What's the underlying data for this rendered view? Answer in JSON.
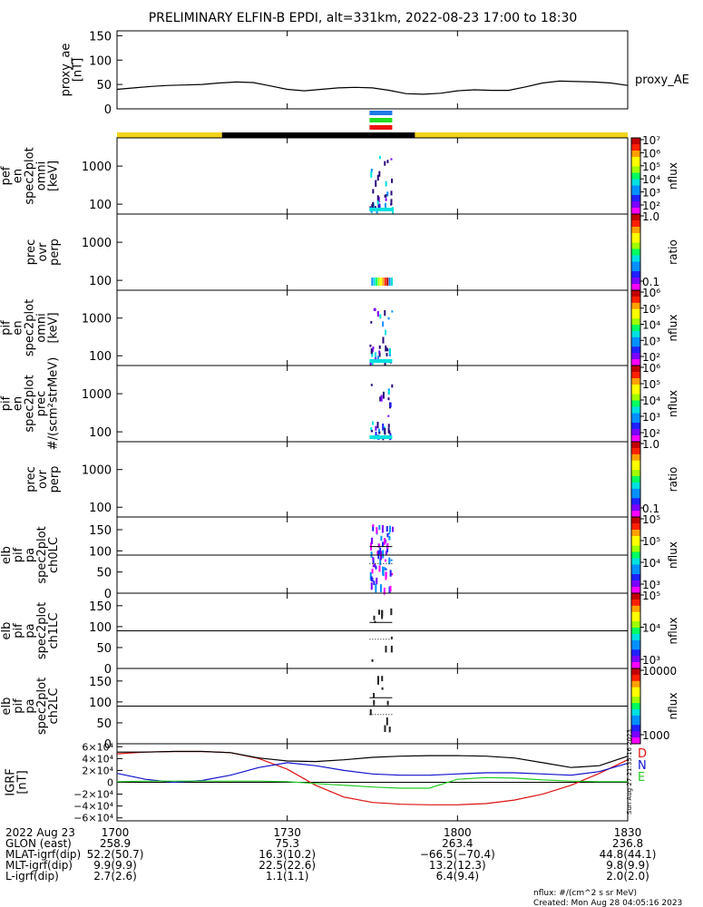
{
  "title": "PRELIMINARY ELFIN-B EPDI, alt=331km, 2022-08-23 17:00 to 18:30",
  "colors": {
    "sun_bar": "#f2d21a",
    "shadow_bar": "#000000",
    "marker_blue": "#1e7be8",
    "marker_green": "#22dd22",
    "marker_red": "#ee1111",
    "igrf_d": "#dd1111",
    "igrf_n": "#1111cc",
    "igrf_e": "#22cc22"
  },
  "time_axis": {
    "ticks": [
      "1700",
      "1730",
      "1800",
      "1830"
    ],
    "minutes": [
      0,
      30,
      60,
      90
    ],
    "range_minutes": [
      0,
      90
    ]
  },
  "orbit_bar": {
    "segments": [
      {
        "state": "sunlight",
        "start_min": 0,
        "end_min": 18.5
      },
      {
        "state": "shadow",
        "start_min": 18.5,
        "end_min": 52.5
      },
      {
        "state": "sunlight",
        "start_min": 52.5,
        "end_min": 90
      }
    ]
  },
  "science_zone_min": [
    44.5,
    48.5
  ],
  "chart_data": [
    {
      "panel": "proxy_ae",
      "type": "line",
      "ylabel": [
        "proxy_ae",
        "[nT]"
      ],
      "yticks": [
        "0",
        "50",
        "100",
        "150"
      ],
      "ylim": [
        0,
        160
      ],
      "legend": "proxy_AE",
      "x": [
        0,
        3,
        6,
        9,
        12,
        15,
        18,
        21,
        24,
        27,
        30,
        33,
        36,
        39,
        42,
        45,
        48,
        51,
        54,
        57,
        60,
        63,
        66,
        69,
        72,
        75,
        78,
        81,
        84,
        87,
        90
      ],
      "values": [
        40,
        43,
        46,
        48,
        49,
        50,
        53,
        55,
        54,
        47,
        40,
        37,
        40,
        43,
        44,
        43,
        38,
        31,
        30,
        32,
        37,
        39,
        38,
        38,
        45,
        53,
        57,
        56,
        55,
        53,
        48
      ]
    },
    {
      "panel": "elb_pef_en_spec2plot_omni",
      "type": "heatmap",
      "ylabel": [
        "elb",
        "pef",
        "en",
        "spec2plot",
        "omni",
        "[keV]"
      ],
      "yticks": [
        "100",
        "1000"
      ],
      "log_y": true,
      "colorbar": {
        "label": "nflux",
        "ticks": [
          "10²",
          "10³",
          "10⁴",
          "10⁵",
          "10⁶",
          "10⁷"
        ]
      }
    },
    {
      "panel": "prec_ovr_perp_1",
      "type": "heatmap",
      "ylabel": [
        "prec",
        "ovr",
        "perp"
      ],
      "yticks": [
        "100",
        "1000"
      ],
      "log_y": true,
      "colorbar": {
        "label": "ratio",
        "ticks": [
          "0.1",
          "1.0"
        ]
      }
    },
    {
      "panel": "elb_pif_en_spec2plot_omni",
      "type": "heatmap",
      "ylabel": [
        "elb",
        "pif",
        "en",
        "spec2plot",
        "omni",
        "[keV]"
      ],
      "yticks": [
        "100",
        "1000"
      ],
      "log_y": true,
      "colorbar": {
        "label": "nflux",
        "ticks": [
          "10²",
          "10³",
          "10⁴",
          "10⁵",
          "10⁶"
        ]
      }
    },
    {
      "panel": "elb_pif_en_spec2plot_prec",
      "type": "heatmap",
      "ylabel": [
        "elb",
        "pif",
        "en",
        "spec2plot",
        "prec",
        "#/(scm²strMeV)"
      ],
      "yticks": [
        "100",
        "1000"
      ],
      "log_y": true,
      "colorbar": {
        "label": "nflux",
        "ticks": [
          "10²",
          "10³",
          "10⁴",
          "10⁵",
          "10⁶"
        ]
      }
    },
    {
      "panel": "prec_ovr_perp_2",
      "type": "heatmap",
      "ylabel": [
        "prec",
        "ovr",
        "perp"
      ],
      "yticks": [
        "100",
        "1000"
      ],
      "log_y": true,
      "colorbar": {
        "label": "ratio",
        "ticks": [
          "0.1",
          "1.0"
        ]
      }
    },
    {
      "panel": "elb_pif_pa_spec2plot_ch0LC",
      "type": "heatmap",
      "ylabel": [
        "elb",
        "pif",
        "pa",
        "spec2plot",
        "ch0LC"
      ],
      "yticks": [
        "0",
        "50",
        "100",
        "150"
      ],
      "ylim": [
        0,
        180
      ],
      "colorbar": {
        "label": "nflux",
        "ticks": [
          "10³",
          "10⁴",
          "10⁵",
          "10⁵"
        ]
      }
    },
    {
      "panel": "elb_pif_pa_spec2plot_ch1LC",
      "type": "heatmap",
      "ylabel": [
        "elb",
        "pif",
        "pa",
        "spec2plot",
        "ch1LC"
      ],
      "yticks": [
        "0",
        "50",
        "100",
        "150"
      ],
      "ylim": [
        0,
        180
      ],
      "colorbar": {
        "label": "nflux",
        "ticks": [
          "10³",
          "10⁴",
          "10⁵"
        ]
      }
    },
    {
      "panel": "elb_pif_pa_spec2plot_ch2LC",
      "type": "heatmap",
      "ylabel": [
        "elb",
        "pif",
        "pa",
        "spec2plot",
        "ch2LC"
      ],
      "yticks": [
        "0",
        "50",
        "100",
        "150"
      ],
      "ylim": [
        0,
        180
      ],
      "colorbar": {
        "label": "nflux",
        "ticks": [
          "1000",
          "10000"
        ]
      }
    },
    {
      "panel": "igrf",
      "type": "line",
      "ylabel": [
        "IGRF",
        "[nT]"
      ],
      "yticks": [
        "−6×10⁴",
        "−4×10⁴",
        "−2×10⁴",
        "0",
        "2×10⁴",
        "4×10⁴",
        "6×10⁴"
      ],
      "ylim": [
        -65000,
        65000
      ],
      "x": [
        0,
        5,
        10,
        15,
        20,
        25,
        30,
        35,
        40,
        45,
        50,
        55,
        60,
        65,
        70,
        75,
        80,
        85,
        90
      ],
      "series": [
        {
          "name": "D",
          "values": [
            48000,
            51000,
            52000,
            52000,
            50000,
            40000,
            22000,
            -5000,
            -25000,
            -34000,
            -37000,
            -38000,
            -38000,
            -36000,
            -30000,
            -20000,
            -5000,
            15000,
            38000
          ]
        },
        {
          "name": "N",
          "values": [
            15000,
            5000,
            0,
            3000,
            12000,
            25000,
            33000,
            28000,
            20000,
            14000,
            12000,
            12000,
            14000,
            16000,
            16000,
            14000,
            12000,
            18000,
            32000
          ]
        },
        {
          "name": "E",
          "values": [
            1000,
            2000,
            2000,
            2000,
            2000,
            2000,
            1000,
            -2000,
            -5000,
            -8000,
            -10000,
            -10000,
            5000,
            8000,
            7000,
            4000,
            2000,
            1000,
            1000
          ]
        },
        {
          "name": "",
          "values": [
            51000,
            51000,
            52000,
            52000,
            50000,
            41000,
            36000,
            35000,
            38000,
            42000,
            44000,
            45000,
            45000,
            44000,
            41000,
            33000,
            25000,
            28000,
            44000
          ]
        }
      ]
    }
  ],
  "ephemeris": {
    "rows": [
      {
        "label": "2022 Aug 23",
        "values": [
          "1700",
          "1730",
          "1800",
          "1830"
        ]
      },
      {
        "label": "GLON (east)",
        "values": [
          "258.9",
          "75.3",
          "263.4",
          "236.8"
        ]
      },
      {
        "label": "MLAT-igrf(dip)",
        "values": [
          "52.2(50.7)",
          "16.3(10.2)",
          "−66.5(−70.4)",
          "44.8(44.1)"
        ]
      },
      {
        "label": "MLT-igrf(dip)",
        "values": [
          "9.9(9.9)",
          "22.5(22.6)",
          "13.2(12.3)",
          "9.8(9.9)"
        ]
      },
      {
        "label": "L-igrf(dip)",
        "values": [
          "2.7(2.6)",
          "1.1(1.1)",
          "6.4(9.4)",
          "2.0(2.0)"
        ]
      }
    ]
  },
  "footer": {
    "units": "nflux: #/(cm^2 s sr MeV)",
    "created": "Created: Mon Aug 28 04:05:16 2023",
    "stamp": "Sun Aug 27 21:35:16 2023"
  }
}
